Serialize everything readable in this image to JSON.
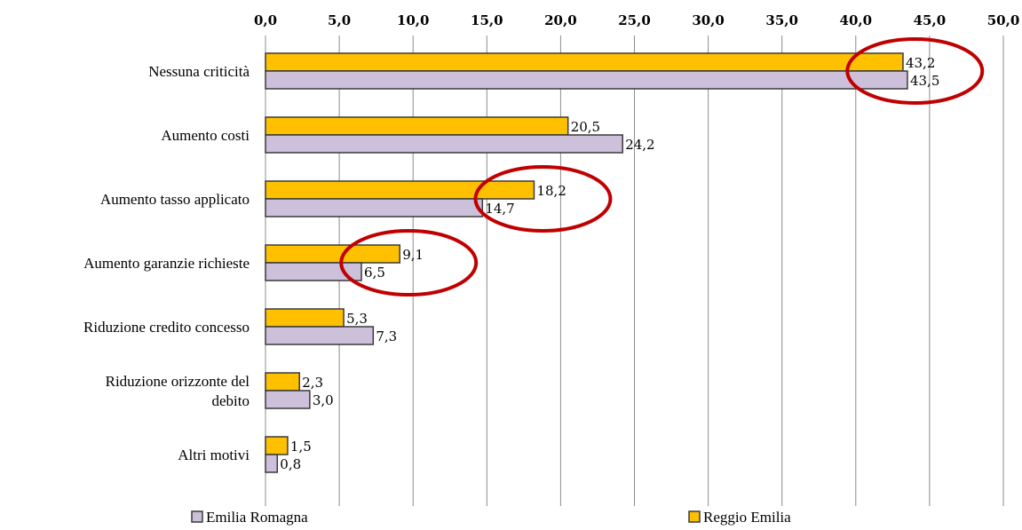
{
  "chart_data": {
    "type": "bar",
    "orientation": "horizontal",
    "categories": [
      [
        "Nessuna criticità"
      ],
      [
        "Aumento costi"
      ],
      [
        "Aumento tasso applicato"
      ],
      [
        "Aumento garanzie richieste"
      ],
      [
        "Riduzione credito concesso"
      ],
      [
        "Riduzione orizzonte del",
        "debito"
      ],
      [
        "Altri motivi"
      ]
    ],
    "series": [
      {
        "name": "Reggio Emilia",
        "color": "#FFC000",
        "values": [
          43.2,
          20.5,
          18.2,
          9.1,
          5.3,
          2.3,
          1.5
        ],
        "labels": [
          "43,2",
          "20,5",
          "18,2",
          "9,1",
          "5,3",
          "2,3",
          "1,5"
        ]
      },
      {
        "name": "Emilia Romagna",
        "color": "#CCC0DA",
        "values": [
          43.5,
          24.2,
          14.7,
          6.5,
          7.3,
          3.0,
          0.8
        ],
        "labels": [
          "43,5",
          "24,2",
          "14,7",
          "6,5",
          "7,3",
          "3,0",
          "0,8"
        ]
      }
    ],
    "xlim": [
      0,
      50
    ],
    "xticks": [
      "0,0",
      "5,0",
      "10,0",
      "15,0",
      "20,0",
      "25,0",
      "30,0",
      "35,0",
      "40,0",
      "45,0",
      "50,0"
    ],
    "x_axis_position": "top",
    "grid": true,
    "legend": {
      "placement": "bottom",
      "order": [
        "Emilia Romagna",
        "Reggio Emilia"
      ]
    },
    "annotations": [
      {
        "type": "ellipse",
        "color": "#C00000",
        "category_index": 0
      },
      {
        "type": "ellipse",
        "color": "#C00000",
        "category_index": 2
      },
      {
        "type": "ellipse",
        "color": "#C00000",
        "category_index": 3
      }
    ]
  }
}
